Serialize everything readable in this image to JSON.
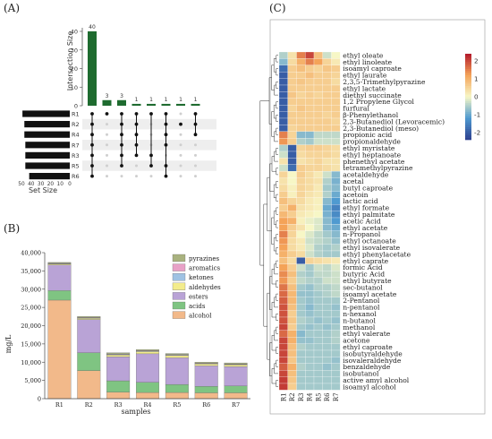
{
  "panels": {
    "a": {
      "label": "(A)",
      "ylabel": "Intersection Size",
      "xlabel": "Set Size",
      "ylim": [
        0,
        40
      ],
      "yticks": [
        0,
        10,
        20,
        30,
        40
      ],
      "set_size_ticks": [
        "50",
        "40",
        "30",
        "20",
        "10",
        "0"
      ],
      "sets": [
        "R1",
        "R2",
        "R4",
        "R7",
        "R3",
        "R5",
        "R6"
      ],
      "bar_color": "#1e6b2f",
      "matrix_bar_color": "#111111"
    },
    "b": {
      "label": "(B)",
      "ylabel": "mg/L",
      "xlabel": "samples",
      "ylim": [
        0,
        40000
      ],
      "yticks": [
        "0",
        "5,000",
        "10,000",
        "15,000",
        "20,000",
        "25,000",
        "30,000",
        "35,000",
        "40,000"
      ]
    },
    "c": {
      "label": "(C)",
      "colorbar_ticks": [
        "2",
        "1",
        "0",
        "-1",
        "-2"
      ],
      "colors": {
        "high": "#b2182b",
        "mid": "#f7f7c6",
        "low": "#2c3f8f"
      }
    }
  },
  "chart_data": [
    {
      "panel": "A",
      "type": "bar",
      "title": "",
      "ylabel": "Intersection Size",
      "xlabel": "Set Size",
      "ylim": [
        0,
        40
      ],
      "values": [
        40,
        3,
        3,
        1,
        1,
        1,
        1,
        1
      ],
      "intersections": [
        [
          "R1",
          "R2",
          "R4",
          "R7",
          "R3",
          "R5",
          "R6"
        ],
        [
          "R1"
        ],
        [
          "R1",
          "R2",
          "R4",
          "R7",
          "R3",
          "R5"
        ],
        [
          "R1",
          "R2",
          "R4",
          "R7",
          "R3"
        ],
        [
          "R1",
          "R3",
          "R5"
        ],
        [
          "R1",
          "R2",
          "R4",
          "R7",
          "R5",
          "R6"
        ],
        [
          "R2"
        ],
        [
          "R1",
          "R2",
          "R4"
        ]
      ],
      "set_sizes": {
        "R1": 49,
        "R2": 47,
        "R4": 47,
        "R7": 46,
        "R3": 46,
        "R5": 46,
        "R6": 42
      }
    },
    {
      "panel": "B",
      "type": "bar",
      "stacked": true,
      "title": "",
      "xlabel": "samples",
      "ylabel": "mg/L",
      "ylim": [
        0,
        40000
      ],
      "categories": [
        "R1",
        "R2",
        "R3",
        "R4",
        "R5",
        "R6",
        "R7"
      ],
      "legend_position": "top-right",
      "series": [
        {
          "name": "alcohol",
          "color": "#f2b98a",
          "values": [
            27000,
            7700,
            1800,
            1700,
            1700,
            1600,
            1600
          ]
        },
        {
          "name": "acids",
          "color": "#7fc482",
          "values": [
            2600,
            4900,
            3100,
            2800,
            2200,
            1800,
            1900
          ]
        },
        {
          "name": "esters",
          "color": "#b9a3d6",
          "values": [
            7000,
            9100,
            6600,
            7800,
            7300,
            5600,
            5300
          ]
        },
        {
          "name": "aldehydes",
          "color": "#f3ec8c",
          "values": [
            300,
            300,
            500,
            600,
            600,
            500,
            500
          ]
        },
        {
          "name": "ketones",
          "color": "#9fc2e3",
          "values": [
            120,
            120,
            150,
            150,
            150,
            120,
            120
          ]
        },
        {
          "name": "aromatics",
          "color": "#e8a1c7",
          "values": [
            100,
            120,
            120,
            120,
            120,
            100,
            100
          ]
        },
        {
          "name": "pyrazines",
          "color": "#a9b27f",
          "values": [
            200,
            300,
            300,
            300,
            300,
            280,
            280
          ]
        }
      ]
    },
    {
      "panel": "C",
      "type": "heatmap",
      "title": "",
      "columns": [
        "R1",
        "R2",
        "R3",
        "R4",
        "R5",
        "R6",
        "R7"
      ],
      "range": [
        -2.4,
        2.4
      ],
      "rows": [
        {
          "name": "ethyl oleate",
          "values": [
            -0.5,
            0.3,
            1.5,
            2.0,
            0.8,
            -0.3,
            0.0
          ]
        },
        {
          "name": "ethyl linoleate",
          "values": [
            -0.8,
            0.4,
            1.0,
            1.5,
            1.2,
            0.5,
            0.2
          ]
        },
        {
          "name": "isoamyl caproate",
          "values": [
            -1.8,
            0.6,
            0.8,
            0.6,
            0.5,
            0.7,
            0.6
          ]
        },
        {
          "name": "ethyl laurate",
          "values": [
            -2.0,
            0.6,
            0.6,
            0.8,
            0.6,
            0.6,
            0.5
          ]
        },
        {
          "name": "2,3,5-Trimethylpyrazine",
          "values": [
            -2.0,
            0.6,
            0.7,
            0.6,
            0.6,
            0.6,
            0.4
          ]
        },
        {
          "name": "ethyl lactate",
          "values": [
            -2.0,
            0.6,
            0.6,
            0.6,
            0.6,
            0.6,
            0.6
          ]
        },
        {
          "name": "diethyl succinate",
          "values": [
            -2.0,
            0.7,
            0.5,
            0.6,
            0.5,
            0.6,
            0.6
          ]
        },
        {
          "name": "1,2 Propylene Glycol",
          "values": [
            -2.0,
            0.6,
            0.6,
            0.6,
            0.6,
            0.6,
            0.6
          ]
        },
        {
          "name": "furfural",
          "values": [
            -2.0,
            0.5,
            0.7,
            0.6,
            0.6,
            0.6,
            0.6
          ]
        },
        {
          "name": "β-Phenylethanol",
          "values": [
            -2.0,
            0.6,
            0.6,
            0.6,
            0.6,
            0.5,
            0.6
          ]
        },
        {
          "name": "2,3-Butanediol (Levoracemic)",
          "values": [
            -2.0,
            0.6,
            0.6,
            0.6,
            0.6,
            0.6,
            0.5
          ]
        },
        {
          "name": "2,3-Butanediol (meso)",
          "values": [
            -2.0,
            0.5,
            0.6,
            0.6,
            0.6,
            0.6,
            0.6
          ]
        },
        {
          "name": "propionic acid",
          "values": [
            1.5,
            0.5,
            -0.8,
            -0.8,
            -0.4,
            -0.4,
            -0.4
          ]
        },
        {
          "name": "propionaldehyde",
          "values": [
            1.3,
            0.6,
            -0.5,
            -0.6,
            -0.3,
            -0.3,
            -0.3
          ]
        },
        {
          "name": "ethyl myristate",
          "values": [
            -0.5,
            -2.0,
            0.5,
            0.6,
            0.6,
            0.5,
            0.4
          ]
        },
        {
          "name": "ethyl heptanoate",
          "values": [
            -0.3,
            -2.0,
            0.4,
            0.5,
            0.5,
            0.5,
            0.4
          ]
        },
        {
          "name": "phenethyl acetate",
          "values": [
            0.3,
            -2.0,
            0.3,
            0.4,
            0.5,
            0.3,
            0.3
          ]
        },
        {
          "name": "tetramethylpyrazine",
          "values": [
            -0.3,
            -1.8,
            0.6,
            0.5,
            0.5,
            0.4,
            0.3
          ]
        },
        {
          "name": "acetaldehyde",
          "values": [
            0.5,
            0.0,
            0.6,
            0.4,
            0.2,
            -0.3,
            -0.8
          ]
        },
        {
          "name": "acetal",
          "values": [
            0.3,
            0.0,
            0.5,
            0.4,
            0.3,
            -0.5,
            -0.9
          ]
        },
        {
          "name": "butyl caproate",
          "values": [
            0.4,
            0.1,
            0.5,
            0.4,
            0.2,
            -0.6,
            -0.8
          ]
        },
        {
          "name": "acetoin",
          "values": [
            0.6,
            0.1,
            0.5,
            0.3,
            0.2,
            -0.5,
            -1.0
          ]
        },
        {
          "name": "lactic acid",
          "values": [
            0.8,
            0.5,
            0.4,
            0.2,
            0.1,
            -0.8,
            -1.2
          ]
        },
        {
          "name": "ethyl formate",
          "values": [
            0.6,
            1.0,
            0.3,
            0.2,
            0.1,
            -1.0,
            -1.5
          ]
        },
        {
          "name": "ethyl palmitate",
          "values": [
            0.9,
            0.6,
            0.2,
            0.1,
            0.0,
            -0.9,
            -1.4
          ]
        },
        {
          "name": "acetic Acid",
          "values": [
            1.2,
            1.0,
            0.1,
            -0.1,
            -0.2,
            -0.8,
            -1.2
          ]
        },
        {
          "name": "ethyl acetate",
          "values": [
            1.2,
            0.6,
            0.3,
            0.0,
            -0.2,
            -0.8,
            -1.0
          ]
        },
        {
          "name": "n-Propanol",
          "values": [
            1.5,
            0.5,
            0.0,
            -0.2,
            -0.4,
            -0.6,
            -0.8
          ]
        },
        {
          "name": "ethyl octanoate",
          "values": [
            1.3,
            0.4,
            0.2,
            -0.3,
            -0.4,
            -0.5,
            -0.7
          ]
        },
        {
          "name": "ethyl isovalerate",
          "values": [
            1.2,
            0.4,
            0.2,
            -0.2,
            -0.5,
            -0.6,
            -0.5
          ]
        },
        {
          "name": "ethyl phenylacetate",
          "values": [
            1.0,
            0.6,
            0.4,
            -0.3,
            -0.5,
            -0.6,
            -0.6
          ]
        },
        {
          "name": "ethyl caprate",
          "values": [
            0.8,
            0.4,
            -2.0,
            0.5,
            0.4,
            0.3,
            0.2
          ]
        },
        {
          "name": "formic Acid",
          "values": [
            1.2,
            0.6,
            -0.3,
            -0.6,
            -0.3,
            -0.4,
            -0.2
          ]
        },
        {
          "name": "butyric Acid",
          "values": [
            1.4,
            0.8,
            -0.5,
            -0.6,
            -0.4,
            -0.4,
            -0.3
          ]
        },
        {
          "name": "ethyl butyrate",
          "values": [
            1.3,
            0.6,
            -0.4,
            -0.5,
            -0.5,
            -0.3,
            -0.3
          ]
        },
        {
          "name": "sec-butanol",
          "values": [
            1.6,
            0.8,
            -0.6,
            -0.7,
            -0.5,
            -0.5,
            -0.4
          ]
        },
        {
          "name": "isoamyl acetate",
          "values": [
            1.7,
            0.9,
            -0.7,
            -0.7,
            -0.6,
            -0.5,
            -0.4
          ]
        },
        {
          "name": "2-Pentanol",
          "values": [
            1.8,
            0.9,
            -0.6,
            -0.7,
            -0.6,
            -0.6,
            -0.6
          ]
        },
        {
          "name": "n-pentanol",
          "values": [
            1.9,
            0.8,
            -0.6,
            -0.8,
            -0.6,
            -0.6,
            -0.7
          ]
        },
        {
          "name": "n-hexanol",
          "values": [
            1.9,
            0.6,
            -0.6,
            -0.7,
            -0.6,
            -0.6,
            -0.6
          ]
        },
        {
          "name": "n-butanol",
          "values": [
            1.9,
            0.7,
            -0.5,
            -0.6,
            -0.7,
            -0.6,
            -0.7
          ]
        },
        {
          "name": "methanol",
          "values": [
            2.0,
            0.6,
            -0.6,
            -0.7,
            -0.6,
            -0.7,
            -0.6
          ]
        },
        {
          "name": "ethyl valerate",
          "values": [
            1.7,
            1.0,
            -0.8,
            -0.6,
            -0.6,
            -0.6,
            -0.5
          ]
        },
        {
          "name": "acetone",
          "values": [
            2.0,
            1.0,
            -0.7,
            -0.7,
            -0.6,
            -0.6,
            -0.5
          ]
        },
        {
          "name": "ethyl caproate",
          "values": [
            2.0,
            0.8,
            -0.5,
            -0.6,
            -0.6,
            -0.6,
            -0.6
          ]
        },
        {
          "name": "isobutyraldehyde",
          "values": [
            2.0,
            0.8,
            -0.6,
            -0.6,
            -0.6,
            -0.6,
            -0.6
          ]
        },
        {
          "name": "isovaleraldehyde",
          "values": [
            2.0,
            0.7,
            -0.6,
            -0.6,
            -0.6,
            -0.6,
            -0.7
          ]
        },
        {
          "name": "benzaldehyde",
          "values": [
            1.8,
            1.0,
            -0.5,
            -0.6,
            -0.6,
            -0.7,
            -0.6
          ]
        },
        {
          "name": "isobutanol",
          "values": [
            2.0,
            0.8,
            -0.6,
            -0.6,
            -0.6,
            -0.6,
            -0.6
          ]
        },
        {
          "name": "active amyl alcohol",
          "values": [
            2.1,
            0.7,
            -0.6,
            -0.6,
            -0.6,
            -0.6,
            -0.6
          ]
        },
        {
          "name": "isoamyl alcohol",
          "values": [
            2.1,
            0.6,
            -0.6,
            -0.6,
            -0.6,
            -0.6,
            -0.6
          ]
        }
      ]
    }
  ]
}
